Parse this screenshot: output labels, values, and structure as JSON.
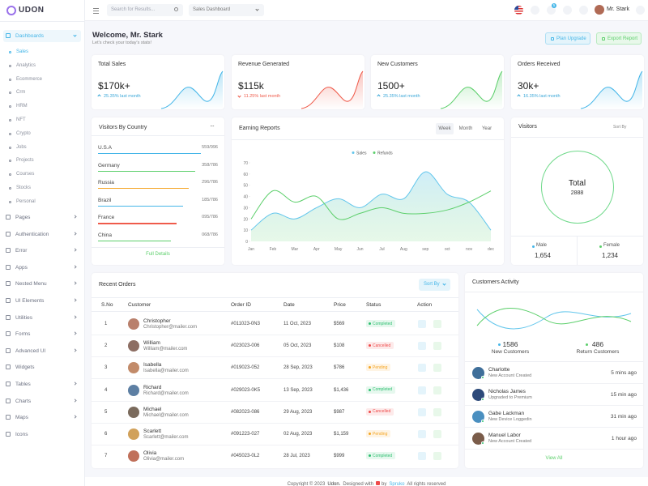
{
  "sidebar": {
    "logo": "UDON",
    "menu": [
      {
        "label": "Dashboards",
        "submenu": true,
        "children": [
          "Sales",
          "Analytics",
          "Ecommerce",
          "Crm",
          "HRM",
          "NFT",
          "Crypto",
          "Jobs",
          "Projects",
          "Courses",
          "Stocks",
          "Personal"
        ]
      },
      {
        "label": "Pages",
        "submenu": true
      },
      {
        "label": "Authentication",
        "submenu": true
      },
      {
        "label": "Error",
        "submenu": true
      },
      {
        "label": "Apps",
        "submenu": true
      },
      {
        "label": "Nested Menu",
        "submenu": true
      },
      {
        "label": "UI Elements",
        "submenu": true
      },
      {
        "label": "Utilities",
        "submenu": true
      },
      {
        "label": "Forms",
        "submenu": true
      },
      {
        "label": "Advanced UI",
        "submenu": true
      },
      {
        "label": "Widgets",
        "submenu": false
      },
      {
        "label": "Tables",
        "submenu": true
      },
      {
        "label": "Charts",
        "submenu": true
      },
      {
        "label": "Maps",
        "submenu": true
      },
      {
        "label": "Icons",
        "submenu": false
      }
    ]
  },
  "header": {
    "search_placeholder": "Search for Results...",
    "dashboard_select": "Sales Dashboard",
    "cart_badge": "5",
    "user": "Mr. Stark"
  },
  "welcome": {
    "title": "Welcome, Mr. Stark",
    "subtitle": "Let's check your today's stats!",
    "buttons": [
      "Plan Upgrade",
      "Export Report"
    ]
  },
  "stats": [
    {
      "title": "Total Sales",
      "value": "$170k+",
      "change": "25.35% last month",
      "trend": "up",
      "color": "#45b6e8"
    },
    {
      "title": "Revenue Generated",
      "value": "$115k",
      "change": "11.25% last month",
      "trend": "down",
      "color": "#ef5b4b"
    },
    {
      "title": "New Customers",
      "value": "1500+",
      "change": "25.35% last month",
      "trend": "up",
      "color": "#5ccf6b"
    },
    {
      "title": "Orders Received",
      "value": "30k+",
      "change": "16.35% last month",
      "trend": "up",
      "color": "#45b6e8"
    }
  ],
  "visitors_by_country": {
    "title": "Visitors By Country",
    "rows": [
      {
        "name": "U.S.A",
        "label": "559/996",
        "color": "#45b6e8"
      },
      {
        "name": "Germany",
        "label": "358/786",
        "color": "#5ccf6b"
      },
      {
        "name": "Russia",
        "label": "296/786",
        "color": "#f5a524"
      },
      {
        "name": "Brazil",
        "label": "185/786",
        "color": "#45b6e8"
      },
      {
        "name": "France",
        "label": "095/786",
        "color": "#ef5b4b"
      },
      {
        "name": "China",
        "label": "068/786",
        "color": "#5ccf6b"
      }
    ],
    "link": "Full Details"
  },
  "earning_reports": {
    "title": "Earning Reports",
    "tabs": [
      "Week",
      "Month",
      "Year"
    ],
    "chart_data": {
      "type": "line",
      "categories": [
        "Jan",
        "Feb",
        "Mar",
        "Apr",
        "May",
        "Jun",
        "Jul",
        "Aug",
        "sep",
        "oct",
        "nov",
        "dec"
      ],
      "series": [
        {
          "name": "Sales",
          "color": "#62c6ec",
          "values": [
            10,
            25,
            20,
            30,
            38,
            30,
            42,
            38,
            62,
            42,
            35,
            10
          ]
        },
        {
          "name": "Refunds",
          "color": "#5ccf6b",
          "values": [
            20,
            45,
            35,
            40,
            20,
            25,
            30,
            25,
            25,
            28,
            35,
            45
          ]
        }
      ],
      "ylim": [
        0,
        70
      ],
      "yticks": [
        0,
        10,
        20,
        30,
        40,
        50,
        60,
        70
      ]
    }
  },
  "visitors": {
    "title": "Visitors",
    "sort": "Sort By",
    "total_label": "Total",
    "total": "2888",
    "groups": [
      {
        "name": "Male",
        "value": "1,654",
        "color": "#45b6e8"
      },
      {
        "name": "Female",
        "value": "1,234",
        "color": "#5ccf6b"
      }
    ]
  },
  "recent_orders": {
    "title": "Recent Orders",
    "sort": "Sort By",
    "table": {
      "columns": [
        "S.No",
        "Customer",
        "Order ID",
        "Date",
        "Price",
        "Status",
        "Action"
      ],
      "rows": [
        [
          "1",
          "Christopher",
          "Christopher@mailer.com",
          "#011023-0N3",
          "11 Oct, 2023",
          "$569",
          "Completed"
        ],
        [
          "2",
          "William",
          "William@mailer.com",
          "#023023-006",
          "05 Oct, 2023",
          "$108",
          "Cancelled"
        ],
        [
          "3",
          "Isabella",
          "Isabella@mailer.com",
          "#019023-052",
          "28 Sep, 2023",
          "$786",
          "Pending"
        ],
        [
          "4",
          "Richard",
          "Richard@mailer.com",
          "#029023-0K5",
          "13 Sep, 2023",
          "$1,436",
          "Completed"
        ],
        [
          "5",
          "Michael",
          "Michael@mailer.com",
          "#082023-086",
          "29 Aug, 2023",
          "$987",
          "Cancelled"
        ],
        [
          "6",
          "Scarlett",
          "Scarlett@mailer.com",
          "#091223-027",
          "02 Aug, 2023",
          "$1,159",
          "Pending"
        ],
        [
          "7",
          "Olivia",
          "Olivia@mailer.com",
          "#045023-0L2",
          "28 Jul, 2023",
          "$999",
          "Completed"
        ]
      ]
    }
  },
  "customers_activity": {
    "title": "Customers Activity",
    "stats": [
      {
        "value": "1586",
        "label": "New Customers"
      },
      {
        "value": "486",
        "label": "Return Customers"
      }
    ],
    "items": [
      {
        "name": "Charlotte",
        "action": "New Account Created",
        "time": "5 mins ago"
      },
      {
        "name": "Nicholas James",
        "action": "Upgraded to Premium",
        "time": "15 min ago"
      },
      {
        "name": "Gabe Lackman",
        "action": "New Device Loggedin",
        "time": "31 min ago"
      },
      {
        "name": "Manuel Labor",
        "action": "New Account Created",
        "time": "1 hour ago"
      }
    ],
    "link": "View All"
  },
  "footer": {
    "copyright": "Copyright © 2023",
    "brand": "Udon.",
    "designed": "Designed with",
    "by": "by",
    "author": "Spruko",
    "rights": "All rights reserved"
  }
}
